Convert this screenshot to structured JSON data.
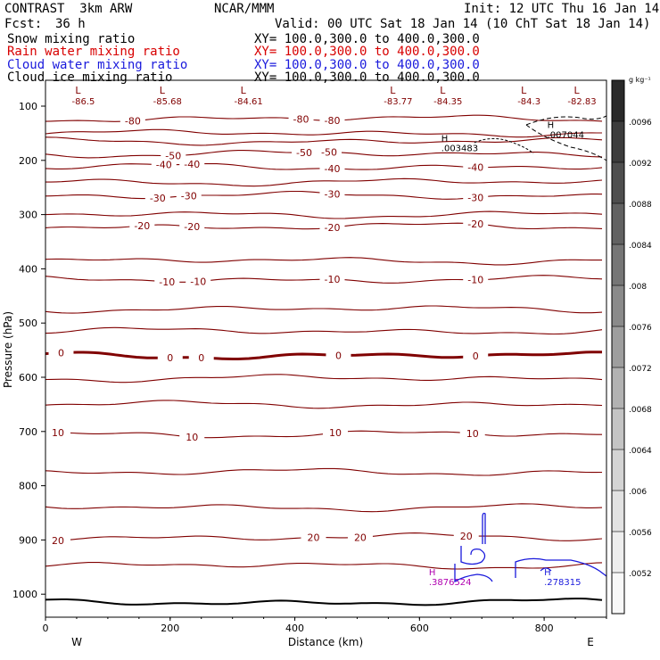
{
  "header": {
    "model": "CONTRAST  3km ARW",
    "org": "NCAR/MMM",
    "init": "Init: 12 UTC Thu 16 Jan 14",
    "fcst_label": "Fcst:",
    "fcst_value": "36 h",
    "valid": "Valid: 00 UTC Sat 18 Jan 14 (10 ChT Sat 18 Jan 14)"
  },
  "fields": [
    {
      "name": "Snow mixing ratio",
      "xy": "XY= 100.0,300.0 to 400.0,300.0",
      "color": "#000000"
    },
    {
      "name": "Rain water mixing ratio",
      "xy": "XY= 100.0,300.0 to 400.0,300.0",
      "color": "#d80000"
    },
    {
      "name": "Cloud water mixing ratio",
      "xy": "XY= 100.0,300.0 to 400.0,300.0",
      "color": "#1a1adc"
    },
    {
      "name": "Cloud ice mixing ratio",
      "xy": "XY= 100.0,300.0 to 400.0,300.0",
      "color": "#000000"
    }
  ],
  "chart_data": {
    "type": "contour",
    "xlabel": "Distance (km)",
    "ylabel": "Pressure (hPa)",
    "xlim": [
      0,
      900
    ],
    "ylim": [
      1045,
      70
    ],
    "x_ticks": [
      0,
      200,
      400,
      600,
      800
    ],
    "y_ticks": [
      100,
      200,
      300,
      400,
      500,
      600,
      700,
      800,
      900,
      1000
    ],
    "x_end_labels": [
      "W",
      "E"
    ],
    "temperature_contours": {
      "color": "#800000",
      "interval_C": 5,
      "levels": [
        {
          "p": 123,
          "label": "-80",
          "label_x": [
            140,
            410,
            460
          ]
        },
        {
          "p": 150
        },
        {
          "p": 165
        },
        {
          "p": 188,
          "label": "-50",
          "label_x": [
            205,
            415,
            455
          ]
        },
        {
          "p": 212,
          "label": "-40",
          "label_x": [
            190,
            235,
            460,
            690
          ]
        },
        {
          "p": 240
        },
        {
          "p": 265,
          "label": "-30",
          "label_x": [
            180,
            230,
            460,
            690
          ]
        },
        {
          "p": 300
        },
        {
          "p": 322,
          "label": "-20",
          "label_x": [
            155,
            235,
            460,
            690
          ]
        },
        {
          "p": 385
        },
        {
          "p": 420,
          "label": "-10",
          "label_x": [
            195,
            245,
            460,
            690
          ]
        },
        {
          "p": 474
        },
        {
          "p": 515
        },
        {
          "p": 560,
          "label": "0",
          "label_x": [
            25,
            200,
            250,
            470,
            690
          ],
          "bold": true
        },
        {
          "p": 602
        },
        {
          "p": 650
        },
        {
          "p": 705,
          "label": "10",
          "label_x": [
            20,
            235,
            465,
            685
          ]
        },
        {
          "p": 775
        },
        {
          "p": 840
        },
        {
          "p": 895,
          "label": "20",
          "label_x": [
            20,
            430,
            505,
            675
          ]
        },
        {
          "p": 947
        },
        {
          "p": 1015,
          "bold_black": true
        }
      ]
    },
    "minima": [
      {
        "x": 55,
        "label": "-86.5"
      },
      {
        "x": 190,
        "label": "-85.68"
      },
      {
        "x": 320,
        "label": "-84.61"
      },
      {
        "x": 560,
        "label": "-83.77"
      },
      {
        "x": 640,
        "label": "-84.35"
      },
      {
        "x": 770,
        "label": "-84.3"
      },
      {
        "x": 855,
        "label": "-82.83"
      }
    ],
    "maxima": [
      {
        "x": 805,
        "p": 160,
        "label": ".007044",
        "color": "#000000"
      },
      {
        "x": 635,
        "p": 185,
        "label": ".003483",
        "color": "#000000"
      },
      {
        "x": 615,
        "p": 985,
        "label": ".3876524",
        "color": "#b000b0"
      },
      {
        "x": 800,
        "p": 985,
        "label": ".278315",
        "color": "#1a1adc"
      }
    ],
    "colorbar": {
      "unit": "g kg⁻¹",
      "labels": [
        ".0096",
        ".0092",
        ".0088",
        ".0084",
        ".008",
        ".0076",
        ".0072",
        ".0068",
        ".0064",
        ".006",
        ".0056",
        ".0052"
      ],
      "colors": [
        "#2a2a2a",
        "#3c3c3c",
        "#4e4e4e",
        "#626262",
        "#767676",
        "#8a8a8a",
        "#9e9e9e",
        "#b2b2b2",
        "#c4c4c4",
        "#d4d4d4",
        "#e2e2e2",
        "#eeeeee",
        "#f8f8f8"
      ]
    }
  }
}
